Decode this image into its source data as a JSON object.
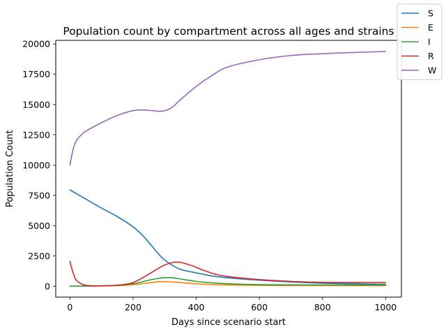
{
  "chart_data": {
    "type": "line",
    "title": "Population count by compartment across all ages and strains",
    "xlabel": "Days since scenario start",
    "ylabel": "Population Count",
    "xlim": [
      -45,
      1050
    ],
    "ylim": [
      -900,
      20300
    ],
    "xticks": [
      0,
      200,
      400,
      600,
      800,
      1000
    ],
    "yticks": [
      0,
      2500,
      5000,
      7500,
      10000,
      12500,
      15000,
      17500,
      20000
    ],
    "grid": false,
    "legend_position": "top-right (outside plot area)",
    "series": [
      {
        "name": "S",
        "color": "#1f77b4",
        "x": [
          0,
          50,
          100,
          150,
          200,
          230,
          260,
          290,
          320,
          350,
          400,
          450,
          500,
          600,
          700,
          800,
          900,
          1000
        ],
        "y": [
          7950,
          7200,
          6450,
          5750,
          4900,
          4200,
          3300,
          2400,
          1800,
          1400,
          1100,
          850,
          700,
          500,
          350,
          250,
          200,
          150
        ]
      },
      {
        "name": "E",
        "color": "#ff7f0e",
        "x": [
          0,
          50,
          100,
          150,
          200,
          250,
          290,
          320,
          350,
          400,
          450,
          500,
          600,
          700,
          800,
          900,
          1000
        ],
        "y": [
          0,
          10,
          20,
          50,
          120,
          280,
          380,
          360,
          300,
          200,
          140,
          100,
          70,
          60,
          55,
          50,
          50
        ]
      },
      {
        "name": "I",
        "color": "#2ca02c",
        "x": [
          0,
          50,
          100,
          150,
          200,
          250,
          290,
          320,
          350,
          400,
          450,
          500,
          600,
          700,
          800,
          900,
          1000
        ],
        "y": [
          0,
          20,
          40,
          80,
          200,
          500,
          680,
          700,
          600,
          400,
          280,
          200,
          130,
          110,
          100,
          100,
          100
        ]
      },
      {
        "name": "R",
        "color": "#d62728",
        "x": [
          0,
          10,
          20,
          40,
          60,
          80,
          100,
          150,
          200,
          250,
          300,
          340,
          380,
          420,
          460,
          500,
          600,
          700,
          800,
          900,
          1000
        ],
        "y": [
          2050,
          1100,
          500,
          150,
          50,
          20,
          30,
          80,
          300,
          1000,
          1750,
          2000,
          1750,
          1350,
          1000,
          800,
          550,
          400,
          320,
          310,
          300
        ]
      },
      {
        "name": "W",
        "color": "#9467bd",
        "x": [
          0,
          10,
          20,
          40,
          60,
          100,
          150,
          200,
          230,
          260,
          290,
          320,
          350,
          400,
          450,
          500,
          600,
          700,
          800,
          900,
          1000
        ],
        "y": [
          10000,
          11300,
          12000,
          12600,
          12950,
          13500,
          14100,
          14500,
          14560,
          14500,
          14450,
          14700,
          15400,
          16500,
          17400,
          18100,
          18700,
          19050,
          19200,
          19300,
          19380
        ]
      }
    ]
  }
}
